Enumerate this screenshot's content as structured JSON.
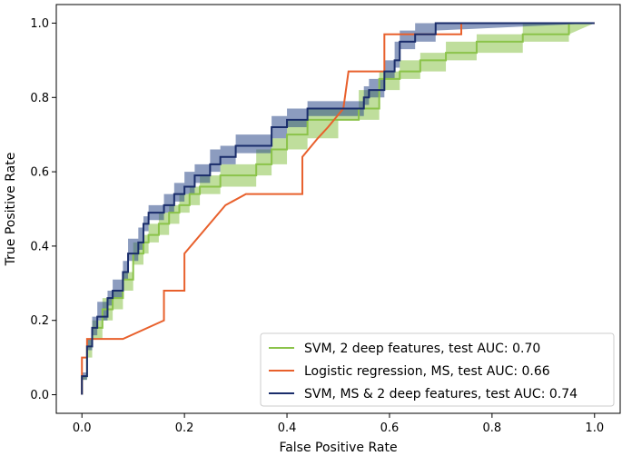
{
  "chart_data": {
    "type": "line",
    "title": "",
    "xlabel": "False Positive Rate",
    "ylabel": "True Positive Rate",
    "xlim": [
      -0.05,
      1.05
    ],
    "ylim": [
      -0.05,
      1.05
    ],
    "xticks": [
      0.0,
      0.2,
      0.4,
      0.6,
      0.8,
      1.0
    ],
    "yticks": [
      0.0,
      0.2,
      0.4,
      0.6,
      0.8,
      1.0
    ],
    "tick_labels_x": [
      "0.0",
      "0.2",
      "0.4",
      "0.6",
      "0.8",
      "1.0"
    ],
    "tick_labels_y": [
      "0.0",
      "0.2",
      "0.4",
      "0.6",
      "0.8",
      "1.0"
    ],
    "legend_position": "lower-right",
    "series": [
      {
        "name": "SVM, 2 deep features, test AUC: 0.70",
        "color": "#8bc34a",
        "band_color": "#8bc34a",
        "x": [
          0.0,
          0.0,
          0.01,
          0.01,
          0.02,
          0.02,
          0.04,
          0.04,
          0.06,
          0.06,
          0.08,
          0.08,
          0.1,
          0.1,
          0.12,
          0.12,
          0.13,
          0.13,
          0.15,
          0.15,
          0.17,
          0.17,
          0.19,
          0.19,
          0.21,
          0.21,
          0.23,
          0.23,
          0.27,
          0.27,
          0.34,
          0.34,
          0.37,
          0.37,
          0.4,
          0.4,
          0.44,
          0.44,
          0.5,
          0.5,
          0.54,
          0.54,
          0.58,
          0.58,
          0.62,
          0.62,
          0.66,
          0.66,
          0.71,
          0.71,
          0.77,
          0.77,
          0.86,
          0.86,
          0.95,
          0.95,
          1.0
        ],
        "y": [
          0.0,
          0.05,
          0.05,
          0.13,
          0.13,
          0.18,
          0.18,
          0.23,
          0.23,
          0.26,
          0.26,
          0.31,
          0.31,
          0.38,
          0.38,
          0.41,
          0.41,
          0.43,
          0.43,
          0.46,
          0.46,
          0.49,
          0.49,
          0.51,
          0.51,
          0.54,
          0.54,
          0.56,
          0.56,
          0.59,
          0.59,
          0.62,
          0.62,
          0.66,
          0.66,
          0.7,
          0.7,
          0.74,
          0.74,
          0.74,
          0.74,
          0.77,
          0.77,
          0.85,
          0.85,
          0.87,
          0.87,
          0.9,
          0.9,
          0.92,
          0.92,
          0.95,
          0.95,
          0.97,
          0.97,
          1.0,
          1.0
        ],
        "y_lower": [
          0.0,
          0.04,
          0.04,
          0.1,
          0.1,
          0.15,
          0.15,
          0.2,
          0.2,
          0.23,
          0.23,
          0.28,
          0.28,
          0.35,
          0.35,
          0.38,
          0.38,
          0.41,
          0.41,
          0.43,
          0.43,
          0.46,
          0.46,
          0.49,
          0.49,
          0.51,
          0.51,
          0.54,
          0.54,
          0.56,
          0.56,
          0.59,
          0.59,
          0.62,
          0.62,
          0.66,
          0.66,
          0.69,
          0.69,
          0.74,
          0.74,
          0.74,
          0.74,
          0.82,
          0.82,
          0.85,
          0.85,
          0.87,
          0.87,
          0.9,
          0.9,
          0.92,
          0.92,
          0.95,
          0.95,
          0.97,
          1.0
        ],
        "y_upper": [
          0.0,
          0.05,
          0.05,
          0.15,
          0.15,
          0.2,
          0.2,
          0.26,
          0.26,
          0.28,
          0.28,
          0.33,
          0.33,
          0.41,
          0.41,
          0.43,
          0.43,
          0.46,
          0.46,
          0.49,
          0.49,
          0.51,
          0.51,
          0.54,
          0.54,
          0.56,
          0.56,
          0.59,
          0.59,
          0.62,
          0.62,
          0.66,
          0.66,
          0.69,
          0.69,
          0.74,
          0.74,
          0.77,
          0.77,
          0.77,
          0.77,
          0.82,
          0.82,
          0.87,
          0.87,
          0.9,
          0.9,
          0.92,
          0.92,
          0.95,
          0.95,
          0.97,
          0.97,
          1.0,
          1.0,
          1.0,
          1.0
        ]
      },
      {
        "name": "Logistic regression, MS, test AUC: 0.66",
        "color": "#e8602c",
        "x": [
          0.0,
          0.0,
          0.01,
          0.01,
          0.02,
          0.02,
          0.08,
          0.16,
          0.16,
          0.2,
          0.2,
          0.28,
          0.28,
          0.32,
          0.32,
          0.43,
          0.43,
          0.46,
          0.46,
          0.48,
          0.48,
          0.51,
          0.51,
          0.52,
          0.52,
          0.59,
          0.59,
          0.74,
          0.74,
          1.0
        ],
        "y": [
          0.0,
          0.1,
          0.1,
          0.15,
          0.15,
          0.15,
          0.15,
          0.2,
          0.28,
          0.28,
          0.38,
          0.51,
          0.51,
          0.54,
          0.54,
          0.54,
          0.64,
          0.69,
          0.69,
          0.72,
          0.72,
          0.77,
          0.77,
          0.87,
          0.87,
          0.87,
          0.97,
          0.97,
          1.0,
          1.0
        ]
      },
      {
        "name": "SVM, MS & 2 deep features, test AUC: 0.74",
        "color": "#1a2d6b",
        "band_color": "#2e4a8a",
        "x": [
          0.0,
          0.0,
          0.01,
          0.01,
          0.02,
          0.02,
          0.03,
          0.03,
          0.05,
          0.05,
          0.06,
          0.06,
          0.08,
          0.08,
          0.09,
          0.09,
          0.11,
          0.11,
          0.12,
          0.12,
          0.13,
          0.13,
          0.16,
          0.16,
          0.18,
          0.18,
          0.2,
          0.2,
          0.22,
          0.22,
          0.25,
          0.25,
          0.27,
          0.27,
          0.3,
          0.3,
          0.37,
          0.37,
          0.4,
          0.4,
          0.44,
          0.44,
          0.5,
          0.5,
          0.55,
          0.55,
          0.56,
          0.56,
          0.59,
          0.59,
          0.61,
          0.61,
          0.62,
          0.62,
          0.65,
          0.65,
          0.69,
          0.69,
          1.0
        ],
        "y": [
          0.0,
          0.05,
          0.05,
          0.13,
          0.13,
          0.18,
          0.18,
          0.21,
          0.21,
          0.26,
          0.26,
          0.28,
          0.28,
          0.33,
          0.33,
          0.38,
          0.38,
          0.41,
          0.41,
          0.46,
          0.46,
          0.49,
          0.49,
          0.51,
          0.51,
          0.54,
          0.54,
          0.56,
          0.56,
          0.59,
          0.59,
          0.62,
          0.62,
          0.64,
          0.64,
          0.67,
          0.67,
          0.72,
          0.72,
          0.74,
          0.74,
          0.77,
          0.77,
          0.77,
          0.77,
          0.8,
          0.8,
          0.82,
          0.82,
          0.87,
          0.87,
          0.9,
          0.9,
          0.95,
          0.95,
          0.97,
          0.97,
          1.0,
          1.0
        ],
        "y_lower": [
          0.0,
          0.04,
          0.04,
          0.12,
          0.12,
          0.16,
          0.16,
          0.2,
          0.2,
          0.24,
          0.24,
          0.26,
          0.26,
          0.31,
          0.31,
          0.36,
          0.36,
          0.39,
          0.39,
          0.44,
          0.44,
          0.47,
          0.47,
          0.49,
          0.49,
          0.52,
          0.52,
          0.54,
          0.54,
          0.57,
          0.57,
          0.6,
          0.6,
          0.62,
          0.62,
          0.65,
          0.65,
          0.69,
          0.69,
          0.72,
          0.72,
          0.75,
          0.75,
          0.75,
          0.75,
          0.78,
          0.78,
          0.8,
          0.8,
          0.85,
          0.85,
          0.88,
          0.88,
          0.93,
          0.93,
          0.95,
          0.95,
          0.98,
          1.0
        ],
        "y_upper": [
          0.0,
          0.06,
          0.06,
          0.15,
          0.15,
          0.21,
          0.21,
          0.25,
          0.25,
          0.28,
          0.28,
          0.31,
          0.31,
          0.36,
          0.36,
          0.42,
          0.42,
          0.45,
          0.45,
          0.48,
          0.48,
          0.51,
          0.51,
          0.54,
          0.54,
          0.57,
          0.57,
          0.6,
          0.6,
          0.62,
          0.62,
          0.66,
          0.66,
          0.67,
          0.67,
          0.7,
          0.7,
          0.75,
          0.75,
          0.77,
          0.77,
          0.79,
          0.79,
          0.79,
          0.79,
          0.83,
          0.83,
          0.85,
          0.85,
          0.9,
          0.9,
          0.95,
          0.95,
          0.98,
          0.98,
          1.0,
          1.0,
          1.0,
          1.0
        ]
      }
    ]
  }
}
